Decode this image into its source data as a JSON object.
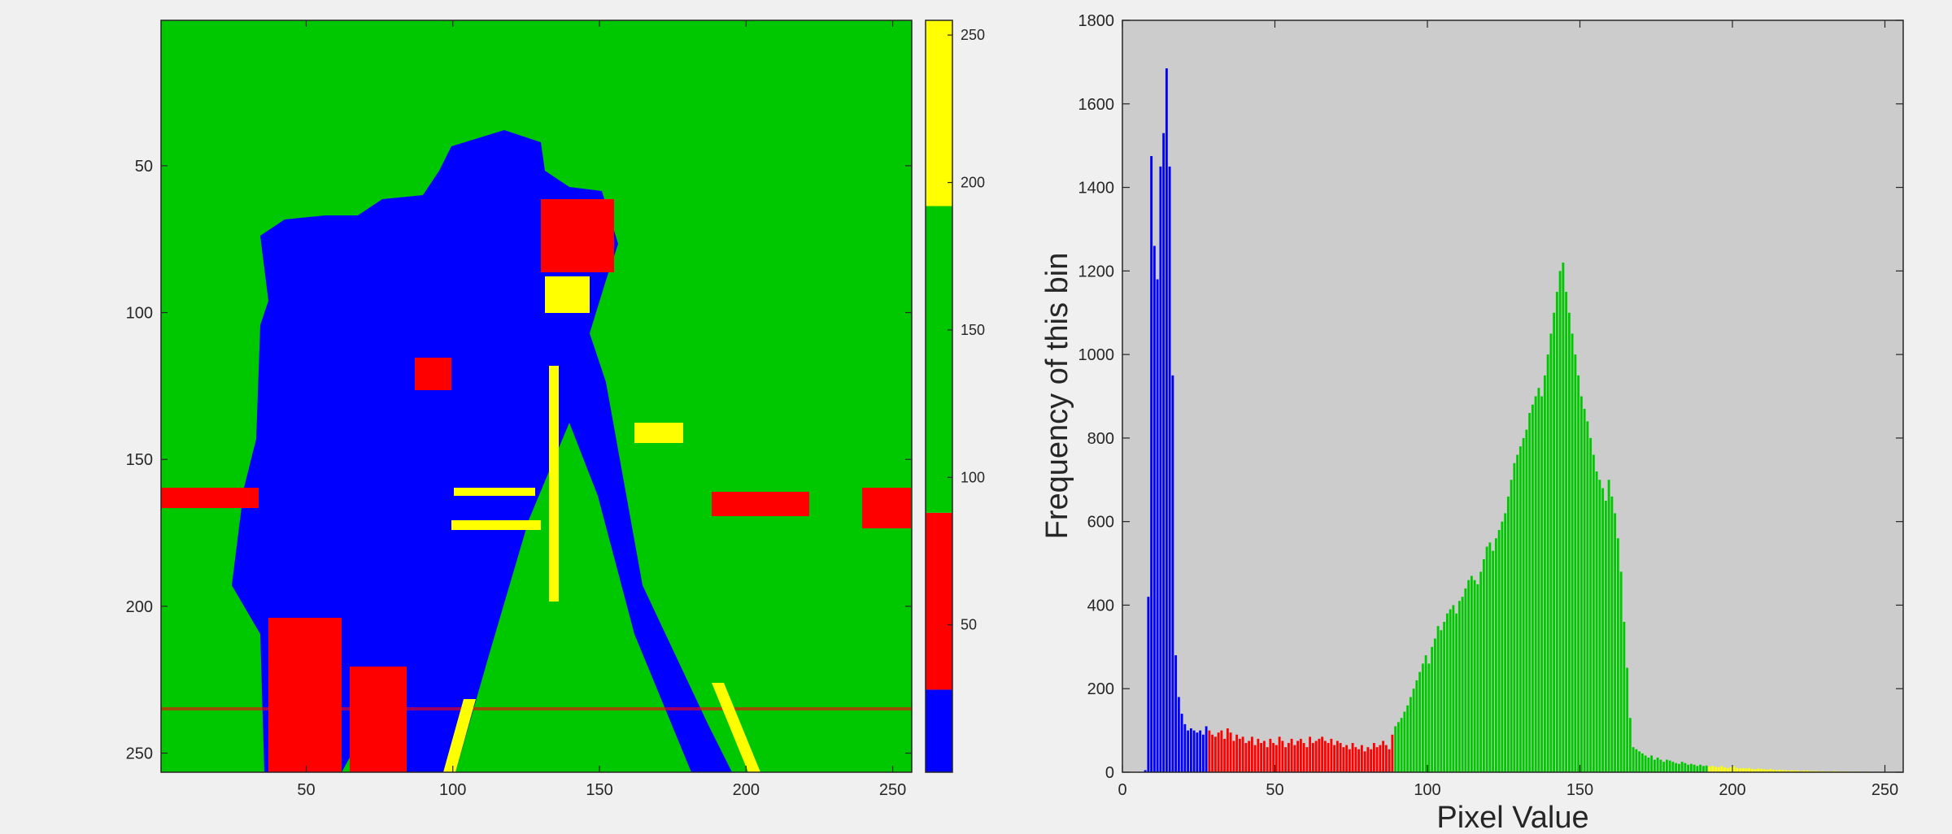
{
  "chart_data": [
    {
      "type": "heatmap",
      "description_of_content": "Cameraman image quantized into 4 intensity bands",
      "x_ticks": [
        50,
        100,
        150,
        200,
        250
      ],
      "y_ticks": [
        50,
        100,
        150,
        200,
        250
      ],
      "xlim": [
        0.5,
        256.5
      ],
      "ylim": [
        0.5,
        256.5
      ],
      "y_direction": "reverse",
      "colormap_bands": [
        {
          "from": 0,
          "to": 28,
          "color": "#0000ff"
        },
        {
          "from": 28,
          "to": 88,
          "color": "#ff0000"
        },
        {
          "from": 88,
          "to": 192,
          "color": "#00c800"
        },
        {
          "from": 192,
          "to": 255,
          "color": "#ffff00"
        }
      ],
      "colorbar": {
        "ticks": [
          50,
          100,
          150,
          200,
          250
        ],
        "range": [
          0,
          255
        ]
      }
    },
    {
      "type": "bar",
      "xlabel": "Pixel Value",
      "ylabel": "Frequency of this bin",
      "xlim": [
        0,
        256
      ],
      "ylim": [
        0,
        1800
      ],
      "x_ticks": [
        0,
        50,
        100,
        150,
        200,
        250
      ],
      "y_ticks": [
        0,
        200,
        400,
        600,
        800,
        1000,
        1200,
        1400,
        1600,
        1800
      ],
      "background": "#cccccc",
      "bin_start": 0,
      "values": [
        0,
        0,
        0,
        0,
        0,
        0,
        0,
        5,
        420,
        1475,
        1260,
        1180,
        1450,
        1530,
        1685,
        1450,
        950,
        280,
        180,
        140,
        115,
        100,
        105,
        100,
        95,
        100,
        90,
        110,
        100,
        90,
        85,
        95,
        100,
        80,
        105,
        95,
        75,
        90,
        80,
        85,
        70,
        75,
        85,
        65,
        80,
        70,
        75,
        60,
        80,
        70,
        65,
        85,
        75,
        60,
        70,
        80,
        65,
        75,
        80,
        70,
        60,
        85,
        70,
        75,
        80,
        85,
        75,
        70,
        80,
        65,
        75,
        70,
        60,
        65,
        55,
        70,
        60,
        55,
        65,
        50,
        60,
        55,
        70,
        60,
        65,
        75,
        65,
        55,
        90,
        110,
        120,
        130,
        145,
        160,
        180,
        200,
        220,
        240,
        260,
        280,
        260,
        300,
        320,
        350,
        340,
        360,
        380,
        390,
        400,
        380,
        410,
        420,
        440,
        460,
        470,
        460,
        450,
        480,
        510,
        540,
        550,
        530,
        560,
        580,
        600,
        620,
        660,
        700,
        740,
        760,
        780,
        800,
        820,
        860,
        880,
        900,
        920,
        900,
        950,
        1000,
        1050,
        1100,
        1150,
        1200,
        1220,
        1150,
        1100,
        1050,
        1000,
        950,
        900,
        870,
        840,
        800,
        760,
        720,
        700,
        680,
        650,
        700,
        660,
        620,
        560,
        480,
        360,
        250,
        130,
        60,
        55,
        50,
        45,
        40,
        35,
        40,
        30,
        35,
        30,
        25,
        30,
        28,
        25,
        22,
        20,
        25,
        22,
        18,
        20,
        18,
        15,
        18,
        15,
        16,
        14,
        15,
        13,
        12,
        15,
        12,
        10,
        12,
        14,
        10,
        9,
        10,
        9,
        10,
        8,
        7,
        9,
        8,
        7,
        6,
        8,
        6,
        5,
        6,
        5,
        5,
        4,
        5,
        4,
        4,
        3,
        4,
        4,
        3,
        3,
        3,
        2,
        3,
        2,
        2,
        2,
        3,
        2,
        2,
        2,
        2,
        2,
        2,
        1,
        2,
        1,
        1,
        2,
        1,
        1,
        1,
        1,
        1,
        1,
        1,
        1,
        1,
        0,
        0,
        0
      ],
      "bin_colors": [
        {
          "from": 0,
          "to": 27,
          "color": "#0000ff"
        },
        {
          "from": 28,
          "to": 88,
          "color": "#ff0000"
        },
        {
          "from": 89,
          "to": 191,
          "color": "#00c800"
        },
        {
          "from": 192,
          "to": 255,
          "color": "#ffff00"
        }
      ]
    }
  ]
}
